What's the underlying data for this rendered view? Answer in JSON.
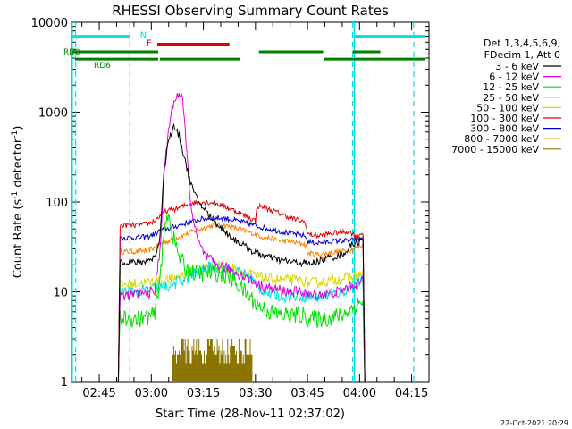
{
  "chart_data": {
    "type": "line",
    "title": "RHESSI Observing Summary Count Rates",
    "xlabel": "Start Time (28-Nov-11 02:37:02)",
    "ylabel_main": "Count Rate (s",
    "ylabel_sup1": "-1",
    "ylabel_mid": " detector",
    "ylabel_sup2": "-1",
    "ylabel_end": ")",
    "footer": "22-Oct-2021 20:29",
    "y_scale": "log",
    "ylim": [
      1,
      10000
    ],
    "xlim_minutes": [
      37.0,
      140.0
    ],
    "x_ticks": [
      {
        "m": 45,
        "label": "02:45"
      },
      {
        "m": 60,
        "label": "03:00"
      },
      {
        "m": 75,
        "label": "03:15"
      },
      {
        "m": 90,
        "label": "03:30"
      },
      {
        "m": 105,
        "label": "03:45"
      },
      {
        "m": 120,
        "label": "04:00"
      },
      {
        "m": 135,
        "label": "04:15"
      }
    ],
    "y_ticks": [
      {
        "v": 1,
        "label": "1"
      },
      {
        "v": 10,
        "label": "10"
      },
      {
        "v": 100,
        "label": "100"
      },
      {
        "v": 1000,
        "label": "1000"
      },
      {
        "v": 10000,
        "label": "10000"
      }
    ],
    "legend_header": [
      "Det 1,3,4,5,6,9,",
      "FDecim 1, Att 0"
    ],
    "legend": [
      {
        "label": "3 - 6 keV",
        "color": "#000000"
      },
      {
        "label": "6 - 12 keV",
        "color": "#e000e0"
      },
      {
        "label": "12 - 25 keV",
        "color": "#00e000"
      },
      {
        "label": "25 - 50 keV",
        "color": "#00e0e0"
      },
      {
        "label": "50 - 100 keV",
        "color": "#d8d800"
      },
      {
        "label": "100 - 300 keV",
        "color": "#e00000"
      },
      {
        "label": "300 - 800 keV",
        "color": "#0000d0"
      },
      {
        "label": "800 - 7000 keV",
        "color": "#ff8000"
      },
      {
        "label": "7000 - 15000 keV",
        "color": "#8b7500"
      }
    ],
    "series": [
      {
        "name": "3 - 6 keV",
        "color": "#000000",
        "noise": 0.04,
        "points": [
          [
            50.5,
            1
          ],
          [
            51,
            22
          ],
          [
            57,
            21
          ],
          [
            61,
            24
          ],
          [
            62.5,
            40
          ],
          [
            63.5,
            200
          ],
          [
            65,
            500
          ],
          [
            66.5,
            680
          ],
          [
            68,
            550
          ],
          [
            69.5,
            320
          ],
          [
            71,
            180
          ],
          [
            72.5,
            120
          ],
          [
            75,
            85
          ],
          [
            78,
            62
          ],
          [
            81,
            48
          ],
          [
            84,
            38
          ],
          [
            87,
            32
          ],
          [
            90,
            27
          ],
          [
            93,
            25
          ],
          [
            96,
            23
          ],
          [
            99,
            22
          ],
          [
            102,
            21
          ],
          [
            104.5,
            21
          ],
          [
            105,
            20
          ],
          [
            108,
            22
          ],
          [
            111,
            24
          ],
          [
            114,
            25
          ],
          [
            116,
            28
          ],
          [
            118,
            34
          ],
          [
            121,
            38
          ],
          [
            121.5,
            1
          ]
        ]
      },
      {
        "name": "6 - 12 keV",
        "color": "#e000e0",
        "noise": 0.06,
        "points": [
          [
            50.5,
            1
          ],
          [
            51,
            9
          ],
          [
            57,
            9.5
          ],
          [
            61,
            10
          ],
          [
            62.5,
            30
          ],
          [
            64,
            300
          ],
          [
            65.5,
            900
          ],
          [
            67,
            1500
          ],
          [
            68,
            1600
          ],
          [
            69,
            1300
          ],
          [
            70,
            500
          ],
          [
            71,
            130
          ],
          [
            72.5,
            50
          ],
          [
            74,
            32
          ],
          [
            76,
            24
          ],
          [
            79,
            20
          ],
          [
            82,
            18
          ],
          [
            85,
            16
          ],
          [
            88,
            14
          ],
          [
            91,
            12
          ],
          [
            94,
            11
          ],
          [
            97,
            10.5
          ],
          [
            100,
            10
          ],
          [
            103,
            10
          ],
          [
            104.5,
            10
          ],
          [
            105,
            9
          ],
          [
            110,
            9.5
          ],
          [
            114,
            10
          ],
          [
            118,
            12
          ],
          [
            121,
            13
          ],
          [
            121.5,
            1
          ]
        ]
      },
      {
        "name": "12 - 25 keV",
        "color": "#00e000",
        "noise": 0.1,
        "points": [
          [
            50.5,
            1
          ],
          [
            51,
            5
          ],
          [
            57,
            5
          ],
          [
            61,
            5.5
          ],
          [
            62.5,
            15
          ],
          [
            64,
            55
          ],
          [
            65,
            80
          ],
          [
            66,
            45
          ],
          [
            68,
            25
          ],
          [
            70,
            18
          ],
          [
            73,
            16
          ],
          [
            76,
            16
          ],
          [
            79,
            16
          ],
          [
            82,
            15
          ],
          [
            85,
            12
          ],
          [
            88,
            9
          ],
          [
            91,
            7
          ],
          [
            94,
            6
          ],
          [
            97,
            5.5
          ],
          [
            100,
            5.5
          ],
          [
            104.5,
            5.5
          ],
          [
            105,
            5
          ],
          [
            110,
            5
          ],
          [
            115,
            5.5
          ],
          [
            119,
            7
          ],
          [
            121,
            8
          ],
          [
            121.5,
            1
          ]
        ]
      },
      {
        "name": "25 - 50 keV",
        "color": "#00e0e0",
        "noise": 0.07,
        "points": [
          [
            50.5,
            1
          ],
          [
            51,
            10
          ],
          [
            57,
            10
          ],
          [
            61,
            11
          ],
          [
            62.5,
            11
          ],
          [
            66,
            12
          ],
          [
            70,
            14
          ],
          [
            74,
            17
          ],
          [
            78,
            19
          ],
          [
            82,
            18
          ],
          [
            86,
            16
          ],
          [
            89,
            14
          ],
          [
            91,
            11
          ],
          [
            94,
            9.5
          ],
          [
            98,
            9
          ],
          [
            102,
            9
          ],
          [
            104.5,
            9
          ],
          [
            105,
            8.5
          ],
          [
            110,
            9
          ],
          [
            115,
            10
          ],
          [
            119,
            12
          ],
          [
            121,
            13
          ],
          [
            121.5,
            3
          ]
        ]
      },
      {
        "name": "50 - 100 keV",
        "color": "#d8d800",
        "noise": 0.06,
        "points": [
          [
            50.5,
            1
          ],
          [
            51,
            12
          ],
          [
            57,
            12.5
          ],
          [
            61,
            13
          ],
          [
            62.5,
            13
          ],
          [
            66,
            14
          ],
          [
            70,
            16
          ],
          [
            74,
            18
          ],
          [
            78,
            20
          ],
          [
            82,
            19
          ],
          [
            86,
            17
          ],
          [
            90,
            15
          ],
          [
            94,
            14
          ],
          [
            98,
            13.5
          ],
          [
            102,
            13.5
          ],
          [
            104.5,
            13
          ],
          [
            105,
            12.5
          ],
          [
            110,
            13
          ],
          [
            115,
            14
          ],
          [
            119,
            15
          ],
          [
            121,
            16
          ],
          [
            121.5,
            1
          ]
        ]
      },
      {
        "name": "100 - 300 keV",
        "color": "#e00000",
        "noise": 0.03,
        "points": [
          [
            50.5,
            1
          ],
          [
            51,
            55
          ],
          [
            56,
            55
          ],
          [
            59,
            57
          ],
          [
            61,
            62
          ],
          [
            62.5,
            70
          ],
          [
            64,
            78
          ],
          [
            66,
            82
          ],
          [
            68,
            86
          ],
          [
            70,
            92
          ],
          [
            72,
            98
          ],
          [
            75,
            100
          ],
          [
            78,
            98
          ],
          [
            81,
            90
          ],
          [
            84,
            80
          ],
          [
            87,
            70
          ],
          [
            90,
            62
          ],
          [
            90.5,
            90
          ],
          [
            92,
            88
          ],
          [
            95,
            80
          ],
          [
            98,
            72
          ],
          [
            101,
            65
          ],
          [
            104,
            60
          ],
          [
            104.5,
            58
          ],
          [
            105,
            44
          ],
          [
            108,
            42
          ],
          [
            111,
            44
          ],
          [
            114,
            46
          ],
          [
            117,
            47
          ],
          [
            119,
            42
          ],
          [
            121,
            45
          ],
          [
            121.5,
            1
          ]
        ]
      },
      {
        "name": "300 - 800 keV",
        "color": "#0000d0",
        "noise": 0.03,
        "points": [
          [
            50.5,
            1
          ],
          [
            51,
            40
          ],
          [
            56,
            40
          ],
          [
            59,
            41
          ],
          [
            61,
            44
          ],
          [
            62.5,
            48
          ],
          [
            66,
            52
          ],
          [
            70,
            58
          ],
          [
            74,
            64
          ],
          [
            78,
            67
          ],
          [
            82,
            65
          ],
          [
            86,
            60
          ],
          [
            89,
            56
          ],
          [
            92,
            52
          ],
          [
            96,
            48
          ],
          [
            100,
            45
          ],
          [
            104,
            42
          ],
          [
            104.5,
            41
          ],
          [
            105,
            36
          ],
          [
            108,
            35
          ],
          [
            111,
            36
          ],
          [
            114,
            37
          ],
          [
            117,
            37
          ],
          [
            119,
            38
          ],
          [
            121,
            40
          ],
          [
            121.5,
            1
          ]
        ]
      },
      {
        "name": "800 - 7000 keV",
        "color": "#ff8000",
        "noise": 0.03,
        "points": [
          [
            50.5,
            1
          ],
          [
            51,
            28
          ],
          [
            56,
            28
          ],
          [
            59,
            29
          ],
          [
            61,
            31
          ],
          [
            62.5,
            34
          ],
          [
            66,
            38
          ],
          [
            70,
            44
          ],
          [
            74,
            50
          ],
          [
            78,
            55
          ],
          [
            81,
            55
          ],
          [
            85,
            50
          ],
          [
            89,
            45
          ],
          [
            92,
            41
          ],
          [
            96,
            38
          ],
          [
            100,
            36
          ],
          [
            104,
            34
          ],
          [
            104.5,
            33
          ],
          [
            105,
            27
          ],
          [
            108,
            26
          ],
          [
            111,
            27
          ],
          [
            114,
            28
          ],
          [
            117,
            29
          ],
          [
            119,
            31
          ],
          [
            121,
            33
          ],
          [
            121.5,
            1
          ]
        ]
      },
      {
        "name": "7000 - 15000 keV",
        "color": "#8b7500",
        "noise": 0.0,
        "points": []
      }
    ],
    "spikes_7000": {
      "color": "#8b7500",
      "x_range": [
        66,
        89
      ],
      "base": 1,
      "levels": [
        1.6,
        2.0,
        2.2,
        2.5,
        3.0
      ]
    },
    "dashed_verticals": {
      "color": "#00e0e0",
      "x": [
        38.2,
        53.8,
        118.0,
        135.6
      ]
    },
    "solid_verticals": {
      "color": "#00e0e0",
      "x": [
        37.2,
        118.5
      ]
    },
    "n_bars": {
      "label": "N",
      "color": "#00e0e0",
      "level": 7000,
      "segments": [
        [
          37.2,
          53.6
        ],
        [
          118.5,
          139.0
        ]
      ]
    },
    "f_bar": {
      "label": "F",
      "color": "#e00000",
      "level": 5700,
      "segments": [
        [
          61.7,
          82.5
        ]
      ]
    },
    "rd0_bars": {
      "label": "RD0",
      "color": "#008000",
      "level": 4700,
      "segments": [
        [
          37.2,
          62.0
        ],
        [
          91.0,
          109.5
        ],
        [
          118.0,
          126.0
        ]
      ]
    },
    "rd6_bars": {
      "label": "RD6",
      "color": "#008000",
      "level": 3900,
      "segments": [
        [
          38.0,
          62.0
        ],
        [
          62.5,
          85.5
        ],
        [
          109.7,
          139.0
        ]
      ]
    }
  }
}
